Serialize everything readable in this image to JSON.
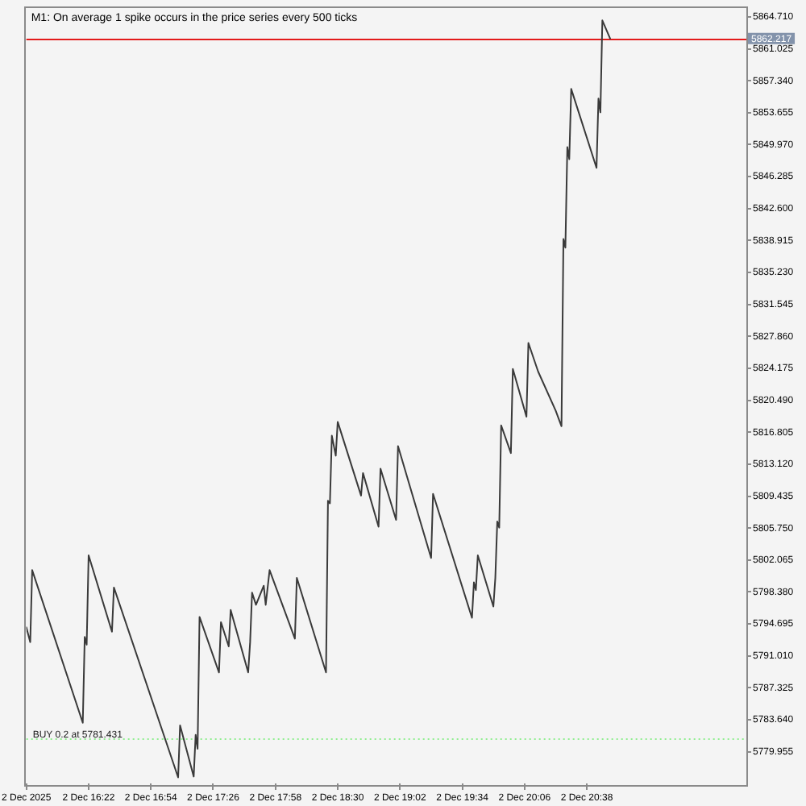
{
  "chart_data": {
    "type": "line",
    "title": "M1: On average 1 spike occurs in the price series every 500 ticks",
    "x": [
      "2025-12-02T15:50",
      "2025-12-02T15:52",
      "2025-12-02T15:53",
      "2025-12-02T16:19",
      "2025-12-02T16:20",
      "2025-12-02T16:21",
      "2025-12-02T16:22",
      "2025-12-02T16:34",
      "2025-12-02T16:35",
      "2025-12-02T17:08",
      "2025-12-02T17:09",
      "2025-12-02T17:16",
      "2025-12-02T17:17",
      "2025-12-02T17:18",
      "2025-12-02T17:19",
      "2025-12-02T17:29",
      "2025-12-02T17:30",
      "2025-12-02T17:34",
      "2025-12-02T17:35",
      "2025-12-02T17:44",
      "2025-12-02T17:45",
      "2025-12-02T17:46",
      "2025-12-02T17:48",
      "2025-12-02T17:52",
      "2025-12-02T17:53",
      "2025-12-02T17:55",
      "2025-12-02T18:08",
      "2025-12-02T18:09",
      "2025-12-02T18:24",
      "2025-12-02T18:25",
      "2025-12-02T18:26",
      "2025-12-02T18:27",
      "2025-12-02T18:29",
      "2025-12-02T18:30",
      "2025-12-02T18:42",
      "2025-12-02T18:43",
      "2025-12-02T18:51",
      "2025-12-02T18:52",
      "2025-12-02T19:00",
      "2025-12-02T19:01",
      "2025-12-02T19:18",
      "2025-12-02T19:19",
      "2025-12-02T19:39",
      "2025-12-02T19:40",
      "2025-12-02T19:41",
      "2025-12-02T19:42",
      "2025-12-02T19:50",
      "2025-12-02T19:51",
      "2025-12-02T19:52",
      "2025-12-02T19:53",
      "2025-12-02T19:54",
      "2025-12-02T19:59",
      "2025-12-02T20:00",
      "2025-12-02T20:07",
      "2025-12-02T20:08",
      "2025-12-02T20:13",
      "2025-12-02T20:22",
      "2025-12-02T20:25",
      "2025-12-02T20:26",
      "2025-12-02T20:27",
      "2025-12-02T20:28",
      "2025-12-02T20:29",
      "2025-12-02T20:30",
      "2025-12-02T20:43",
      "2025-12-02T20:44",
      "2025-12-02T20:45",
      "2025-12-02T20:46",
      "2025-12-02T20:50"
    ],
    "values": [
      5794.3,
      5792.6,
      5800.9,
      5783.3,
      5793.2,
      5792.3,
      5802.6,
      5793.8,
      5798.9,
      5777.0,
      5783.0,
      5777.1,
      5781.9,
      5780.3,
      5795.5,
      5789.1,
      5794.9,
      5792.1,
      5796.3,
      5789.1,
      5792.6,
      5798.3,
      5796.9,
      5799.1,
      5796.9,
      5800.9,
      5793.0,
      5800.0,
      5789.1,
      5808.9,
      5808.6,
      5816.4,
      5814.1,
      5818.0,
      5809.5,
      5812.1,
      5805.9,
      5812.6,
      5806.7,
      5815.2,
      5802.3,
      5809.7,
      5795.4,
      5799.5,
      5798.6,
      5802.6,
      5796.7,
      5800.0,
      5806.5,
      5805.8,
      5817.6,
      5814.4,
      5824.1,
      5818.6,
      5827.1,
      5823.8,
      5819.3,
      5817.5,
      5839.1,
      5838.1,
      5849.7,
      5848.3,
      5856.4,
      5847.3,
      5855.3,
      5853.7,
      5864.3,
      5862.2
    ],
    "color": "#3a3a3a",
    "xlim": [
      "2025-12-02T15:50",
      "2025-12-02T22:00"
    ],
    "xticks": [
      {
        "value": "2025-12-02T15:50",
        "label": "2 Dec 2025"
      },
      {
        "value": "2025-12-02T16:22",
        "label": "2 Dec 16:22"
      },
      {
        "value": "2025-12-02T16:54",
        "label": "2 Dec 16:54"
      },
      {
        "value": "2025-12-02T17:26",
        "label": "2 Dec 17:26"
      },
      {
        "value": "2025-12-02T17:58",
        "label": "2 Dec 17:58"
      },
      {
        "value": "2025-12-02T18:30",
        "label": "2 Dec 18:30"
      },
      {
        "value": "2025-12-02T19:02",
        "label": "2 Dec 19:02"
      },
      {
        "value": "2025-12-02T19:34",
        "label": "2 Dec 19:34"
      },
      {
        "value": "2025-12-02T20:06",
        "label": "2 Dec 20:06"
      },
      {
        "value": "2025-12-02T20:38",
        "label": "2 Dec 20:38"
      }
    ],
    "ylim": [
      5776.3,
      5865.8
    ],
    "yticks": [
      5779.955,
      {
        "value": 5783.64,
        "label": "5783.640"
      },
      5787.325,
      {
        "value": 5791.01,
        "label": "5791.010"
      },
      5794.695,
      {
        "value": 5798.38,
        "label": "5798.380"
      },
      5802.065,
      {
        "value": 5805.75,
        "label": "5805.750"
      },
      5809.435,
      {
        "value": 5813.12,
        "label": "5813.120"
      },
      5816.805,
      {
        "value": 5820.49,
        "label": "5820.490"
      },
      5824.175,
      {
        "value": 5827.86,
        "label": "5827.860"
      },
      5831.545,
      {
        "value": 5835.23,
        "label": "5835.230"
      },
      5838.915,
      {
        "value": 5842.6,
        "label": "5842.600"
      },
      5846.285,
      {
        "value": 5849.97,
        "label": "5849.970"
      },
      5853.655,
      {
        "value": 5857.34,
        "label": "5857.340"
      },
      5861.025,
      {
        "value": 5864.71,
        "label": "5864.710"
      }
    ],
    "ref_lines": [
      {
        "axis": "y",
        "value": 5862.217,
        "label": "5862.217",
        "color": "#e31b1b"
      },
      {
        "axis": "y",
        "value": 5781.431,
        "label": "BUY 0.2 at 5781.431",
        "color": "#90ee90",
        "line_style": "dotted"
      }
    ],
    "grid": false,
    "legend": false,
    "marker": "none"
  }
}
